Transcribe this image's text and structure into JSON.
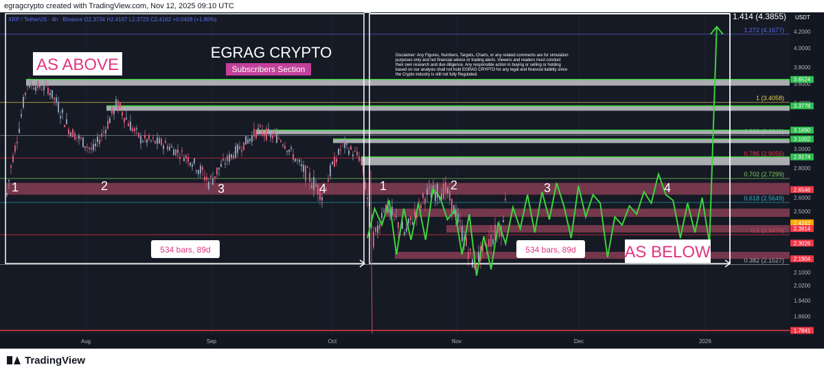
{
  "header": {
    "credit": "egragcrypto created with TradingView.com, Nov 12, 2025 09:10 UTC"
  },
  "footer": {
    "brand": "TradingView"
  },
  "chart_data": {
    "type": "line",
    "symbol_line": "XRP / TetherUS · 4h · Binance  O2.3734  H2.4167  L2.3723  C2.4162  +0.0428 (+1.80%)",
    "currency": "USDT",
    "ylim": [
      1.76,
      4.42
    ],
    "x_ticks": [
      "Aug",
      "Sep",
      "Oct",
      "Nov",
      "Dec",
      "2026"
    ],
    "y_ticks": [
      "4.2000",
      "4.0000",
      "3.8000",
      "3.6000",
      "3.4000",
      "3.2000",
      "3.0000",
      "2.8000",
      "2.6000",
      "2.5000",
      "2.4000",
      "2.3000",
      "2.2000",
      "2.1000",
      "2.0200",
      "1.9400",
      "1.8600"
    ],
    "labels": {
      "title": "EGRAG CRYPTO",
      "subtitle": "Subscribers Section",
      "as_above": "AS ABOVE",
      "as_below": "AS BELOW",
      "bars_left": "534 bars, 89d",
      "bars_right": "534 bars, 89d",
      "disclaimer": "Disclaimer: Any Figures, Numbers, Targets, Charts, or any related comments are for simulation purposes only and not financial advice or trading alerts. Viewers and readers must conduct their own research and due diligence. Any responsible action in buying or selling or holding based on our analysis shall not hold EGRAG CRYPTO for any legal and financial liability since the Crypto industry is still not fully Regulated.",
      "top_target": "1.414 (4.3855)"
    },
    "wave_counts_left": [
      "1",
      "2",
      "3",
      "4"
    ],
    "wave_counts_right": [
      "1",
      "2",
      "3",
      "4"
    ],
    "fib_levels": [
      {
        "label": "1.272 (4.1677)",
        "value": 4.1677,
        "color": "#5b6cf0"
      },
      {
        "label": "1 (3.4058)",
        "value": 3.4058,
        "color": "#e8d44d"
      },
      {
        "label": "0.888 (3.1341)",
        "value": 3.1341,
        "color": "#8c8f99"
      },
      {
        "label": "0.786 (2.9056)",
        "value": 2.9056,
        "color": "#f23645"
      },
      {
        "label": "0.702 (2.7299)",
        "value": 2.7299,
        "color": "#7bd35a"
      },
      {
        "label": "0.618 (2.5649)",
        "value": 2.5649,
        "color": "#2ab7ca"
      },
      {
        "label": "0.5 (2.3479)",
        "value": 2.3479,
        "color": "#f23645"
      },
      {
        "label": "0.382 (2.1527)",
        "value": 2.1527,
        "color": "#b2b5be"
      }
    ],
    "price_tags": [
      {
        "label": "3.6524",
        "value": 3.6524,
        "bg": "#2ebd4e"
      },
      {
        "label": "3.3778",
        "value": 3.3778,
        "bg": "#2ebd4e"
      },
      {
        "label": "3.1890",
        "value": 3.189,
        "bg": "#2ebd4e"
      },
      {
        "label": "3.1002",
        "value": 3.1002,
        "bg": "#2ebd4e"
      },
      {
        "label": "2.9174",
        "value": 2.9174,
        "bg": "#2ebd4e"
      },
      {
        "label": "2.6546",
        "value": 2.6546,
        "bg": "#f23645"
      },
      {
        "label": "2.4162",
        "value": 2.4162,
        "bg": "#f7a600",
        "sub": "02:49:36"
      },
      {
        "label": "2.3814",
        "value": 2.3814,
        "bg": "#f23645"
      },
      {
        "label": "2.3026",
        "value": 2.3026,
        "bg": "#f23645"
      },
      {
        "label": "2.1904",
        "value": 2.1904,
        "bg": "#f23645"
      },
      {
        "label": "1.7841",
        "value": 1.7841,
        "bg": "#f23645"
      }
    ],
    "resistance_zones": [
      {
        "from": 3.6524,
        "to": 3.58
      },
      {
        "from": 3.3778,
        "to": 3.34
      },
      {
        "from": 3.189,
        "to": 3.16
      },
      {
        "from": 3.1002,
        "to": 3.07
      },
      {
        "from": 2.9174,
        "to": 2.83
      }
    ],
    "support_zones": [
      {
        "from": 2.7,
        "to": 2.62
      },
      {
        "from": 2.52,
        "to": 2.46
      },
      {
        "from": 2.4,
        "to": 2.36
      },
      {
        "from": 2.24,
        "to": 2.19
      }
    ],
    "projection_path": [
      [
        0,
        2.33
      ],
      [
        1,
        2.52
      ],
      [
        2,
        2.4
      ],
      [
        3,
        2.58
      ],
      [
        4,
        2.22
      ],
      [
        5,
        2.52
      ],
      [
        6,
        2.32
      ],
      [
        7,
        2.56
      ],
      [
        8,
        2.32
      ],
      [
        9,
        2.66
      ],
      [
        10,
        2.6
      ],
      [
        11,
        2.44
      ],
      [
        12,
        2.51
      ],
      [
        13,
        2.22
      ],
      [
        14,
        2.48
      ],
      [
        15,
        2.08
      ],
      [
        16,
        2.34
      ],
      [
        17,
        2.12
      ],
      [
        18,
        2.42
      ],
      [
        19,
        2.3
      ],
      [
        20,
        2.53
      ],
      [
        21,
        2.38
      ],
      [
        22,
        2.62
      ],
      [
        23,
        2.36
      ],
      [
        24,
        2.64
      ],
      [
        25,
        2.44
      ],
      [
        26,
        2.7
      ],
      [
        27,
        2.54
      ],
      [
        28,
        2.33
      ],
      [
        29,
        2.68
      ],
      [
        30,
        2.46
      ],
      [
        31,
        2.62
      ],
      [
        32,
        2.56
      ],
      [
        33,
        2.2
      ],
      [
        34,
        2.46
      ],
      [
        35,
        2.4
      ],
      [
        36,
        2.54
      ],
      [
        37,
        2.48
      ],
      [
        38,
        2.64
      ],
      [
        39,
        2.56
      ],
      [
        40,
        2.76
      ],
      [
        41,
        2.62
      ],
      [
        42,
        2.58
      ],
      [
        43,
        2.33
      ],
      [
        44,
        2.56
      ],
      [
        45,
        2.36
      ],
      [
        46,
        2.6
      ],
      [
        47,
        2.3
      ],
      [
        48,
        4.26
      ]
    ]
  }
}
